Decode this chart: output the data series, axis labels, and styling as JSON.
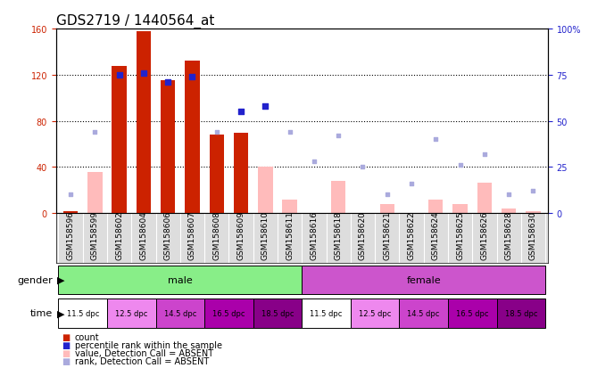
{
  "title": "GDS2719 / 1440564_at",
  "samples": [
    "GSM158596",
    "GSM158599",
    "GSM158602",
    "GSM158604",
    "GSM158606",
    "GSM158607",
    "GSM158608",
    "GSM158609",
    "GSM158610",
    "GSM158611",
    "GSM158616",
    "GSM158618",
    "GSM158620",
    "GSM158621",
    "GSM158622",
    "GSM158624",
    "GSM158625",
    "GSM158626",
    "GSM158628",
    "GSM158630"
  ],
  "red_bars": [
    2,
    0,
    128,
    158,
    115,
    132,
    68,
    70,
    0,
    0,
    0,
    0,
    0,
    0,
    0,
    0,
    0,
    0,
    0,
    0
  ],
  "pink_bars": [
    2,
    36,
    0,
    0,
    0,
    0,
    0,
    0,
    40,
    12,
    0,
    28,
    0,
    8,
    0,
    12,
    8,
    26,
    4,
    2
  ],
  "blue_sq_x": [
    2,
    3,
    4,
    5,
    7,
    8
  ],
  "blue_sq_y_right": [
    75,
    76,
    71,
    74,
    55,
    58
  ],
  "lav_sq_x": [
    0,
    1,
    6,
    9,
    10,
    11,
    12,
    13,
    14,
    15,
    16,
    17,
    18,
    19
  ],
  "lav_sq_y_right": [
    10,
    44,
    44,
    44,
    28,
    42,
    25,
    10,
    16,
    40,
    26,
    32,
    10,
    12
  ],
  "ylim_left": [
    0,
    160
  ],
  "ylim_right": [
    0,
    100
  ],
  "yticks_left": [
    0,
    40,
    80,
    120,
    160
  ],
  "yticks_right": [
    0,
    25,
    50,
    75,
    100
  ],
  "ytick_labels_right": [
    "0",
    "25",
    "50",
    "75",
    "100%"
  ],
  "color_red": "#cc2200",
  "color_pink": "#ffbbbb",
  "color_blue": "#2222cc",
  "color_lavender": "#aaaadd",
  "color_male_bg": "#88ee88",
  "color_female_bg": "#cc55cc",
  "time_colors": [
    "#ffffff",
    "#ee88ee",
    "#cc44cc",
    "#aa00aa",
    "#880088",
    "#ffffff",
    "#ee88ee",
    "#cc44cc",
    "#aa00aa",
    "#880088"
  ],
  "label_fontsize": 8,
  "tick_fontsize": 7,
  "title_fontsize": 11,
  "xticklabel_bg": "#dddddd"
}
